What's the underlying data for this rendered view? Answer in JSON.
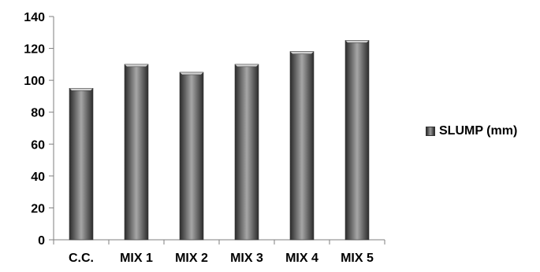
{
  "chart_data": {
    "type": "bar",
    "categories": [
      "C.C.",
      "MIX 1",
      "MIX 2",
      "MIX 3",
      "MIX 4",
      "MIX 5"
    ],
    "series": [
      {
        "name": "SLUMP (mm)",
        "values": [
          95,
          110,
          105,
          110,
          118,
          125
        ]
      }
    ],
    "title": "",
    "xlabel": "",
    "ylabel": "",
    "ylim": [
      0,
      140
    ],
    "yticks": [
      0,
      20,
      40,
      60,
      80,
      100,
      120,
      140
    ],
    "grid": false,
    "legend_position": "right",
    "colors": {
      "bar_dark": "#2b2b2b",
      "bar_light": "#a6a6a6",
      "axis": "#7f7f7f"
    }
  }
}
